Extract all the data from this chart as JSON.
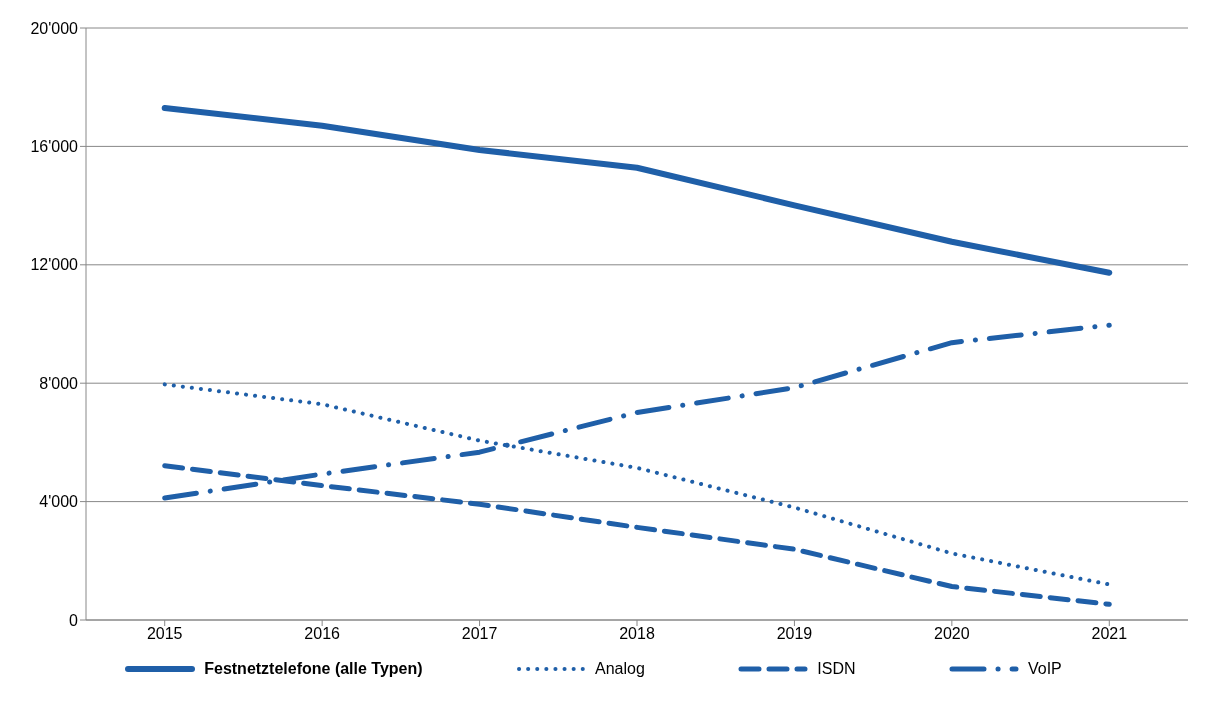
{
  "chart_data": {
    "type": "line",
    "categories": [
      "2015",
      "2016",
      "2017",
      "2018",
      "2019",
      "2020",
      "2021"
    ],
    "series": [
      {
        "name": "Festnetztelefone (alle Typen)",
        "color": "#1f5fa8",
        "line_style": "solid",
        "values": [
          17300,
          16700,
          15880,
          15280,
          14010,
          12780,
          11730
        ]
      },
      {
        "name": "Analog",
        "color": "#1f5fa8",
        "line_style": "dotted",
        "values": [
          7960,
          7290,
          6060,
          5140,
          3800,
          2250,
          1200
        ]
      },
      {
        "name": "ISDN",
        "color": "#1f5fa8",
        "line_style": "dashed",
        "values": [
          5210,
          4540,
          3910,
          3130,
          2390,
          1130,
          530
        ]
      },
      {
        "name": "VoIP",
        "color": "#1f5fa8",
        "line_style": "dashdot",
        "values": [
          4120,
          4930,
          5670,
          7010,
          7850,
          9370,
          9960
        ]
      }
    ],
    "ylim": [
      0,
      20000
    ],
    "yticks": [
      {
        "value": 0,
        "label": "0"
      },
      {
        "value": 4000,
        "label": "4'000"
      },
      {
        "value": 8000,
        "label": "8'000"
      },
      {
        "value": 12000,
        "label": "12'000"
      },
      {
        "value": 16000,
        "label": "16'000"
      },
      {
        "value": 20000,
        "label": "20'000"
      }
    ],
    "grid": "y",
    "legend": "bottom",
    "marker": "none"
  }
}
